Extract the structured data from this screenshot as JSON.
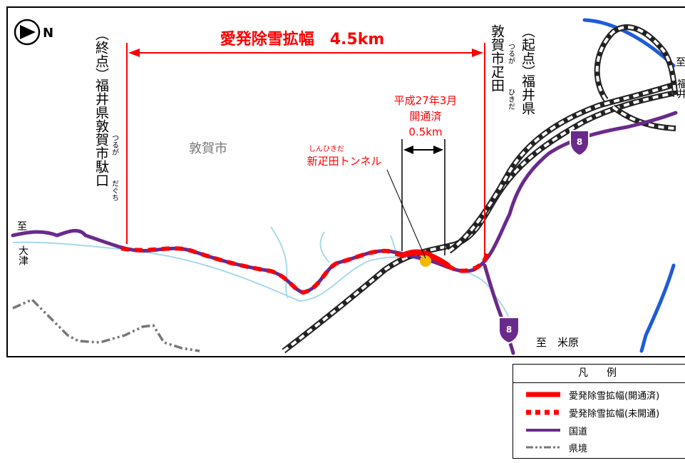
{
  "map": {
    "compass_letter": "N",
    "title": "愛発除雪拡幅　4.5km",
    "city": "敦賀市",
    "end_point": {
      "prefix": "（終点）",
      "address": "福井県敦賀市駄口",
      "ruby_tsuruga": "つるが",
      "ruby_daguchi": "だぐち"
    },
    "start_point": {
      "prefix": "（起点）",
      "pref": "福井県",
      "city_name": "敦賀市疋田",
      "ruby_tsuruga": "つるが",
      "ruby_hikida": "ひきだ"
    },
    "opened": {
      "date": "平成27年3月",
      "status": "開通済",
      "length": "0.5km"
    },
    "tunnel": {
      "name": "新疋田トンネル",
      "ruby": "しんひきだ"
    },
    "direction_otsu": {
      "to": "至",
      "place": "大津"
    },
    "direction_maibara": "至　米原",
    "direction_fukui": {
      "to": "至",
      "place": "福井"
    },
    "route_number": "8"
  },
  "legend": {
    "title": "凡　例",
    "items": [
      {
        "label": "愛発除雪拡幅(開通済)",
        "symbol": "solid-red-line"
      },
      {
        "label": "愛発除雪拡幅(未開通)",
        "symbol": "dashed-red-line"
      },
      {
        "label": "国道",
        "symbol": "purple-line"
      },
      {
        "label": "県境",
        "symbol": "gray-dash-dot-line"
      }
    ]
  },
  "colors": {
    "project": "#ff0000",
    "national_road": "#6a2a8c",
    "river": "#a8d8ea",
    "big_river": "#1f5bd8",
    "prefecture_border": "#777777",
    "opened_marker": "#f5b800",
    "city_label": "#777777"
  }
}
